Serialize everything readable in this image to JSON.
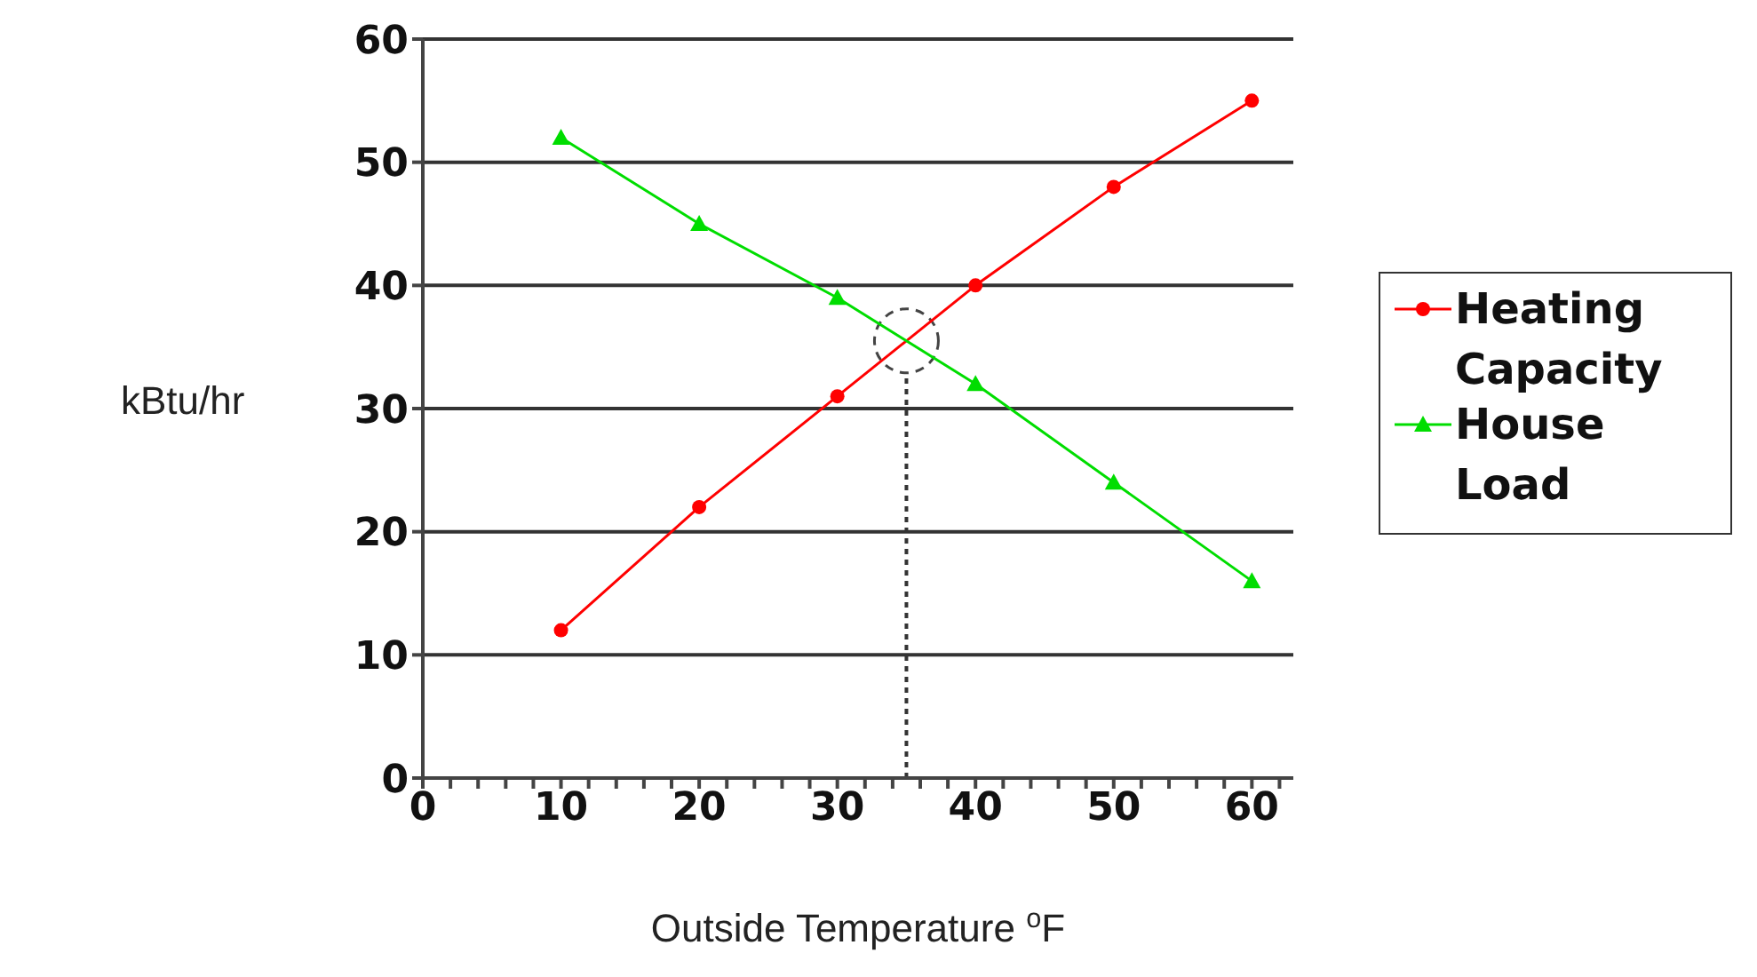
{
  "chart_data": {
    "type": "line",
    "xlabel": "Outside Temperature $^{o}$F",
    "ylabel": "kBtu/hr",
    "x": [
      10,
      20,
      30,
      40,
      50,
      60
    ],
    "series": [
      {
        "name": "Heating Capacity",
        "color": "#ff0000",
        "marker": "circle",
        "values": [
          12,
          22,
          31,
          40,
          48,
          55
        ]
      },
      {
        "name": "House Load",
        "color": "#00dd00",
        "marker": "triangle",
        "values": [
          52,
          45,
          39,
          32,
          24,
          16
        ]
      }
    ],
    "xlim": [
      0,
      63
    ],
    "xticks": [
      0,
      {
        "value": 2,
        "label": null
      },
      {
        "value": 4,
        "label": null
      },
      {
        "value": 6,
        "label": null
      },
      {
        "value": 8,
        "label": null
      },
      10,
      {
        "value": 12,
        "label": null
      },
      {
        "value": 14,
        "label": null
      },
      {
        "value": 16,
        "label": null
      },
      {
        "value": 18,
        "label": null
      },
      20,
      {
        "value": 22,
        "label": null
      },
      {
        "value": 24,
        "label": null
      },
      {
        "value": 26,
        "label": null
      },
      {
        "value": 28,
        "label": null
      },
      30,
      {
        "value": 32,
        "label": null
      },
      {
        "value": 34,
        "label": null
      },
      {
        "value": 36,
        "label": null
      },
      {
        "value": 38,
        "label": null
      },
      40,
      {
        "value": 42,
        "label": null
      },
      {
        "value": 44,
        "label": null
      },
      {
        "value": 46,
        "label": null
      },
      {
        "value": 48,
        "label": null
      },
      50,
      {
        "value": 52,
        "label": null
      },
      {
        "value": 54,
        "label": null
      },
      {
        "value": 56,
        "label": null
      },
      {
        "value": 58,
        "label": null
      },
      60,
      {
        "value": 62,
        "label": null
      }
    ],
    "ylim": [
      0,
      60
    ],
    "yticks": [
      0,
      10,
      20,
      30,
      40,
      50,
      60
    ],
    "ref_lines": [
      {
        "axis": "x",
        "value": 35,
        "line_style": "dotted",
        "color": "#333333"
      }
    ],
    "grid": "y",
    "legend": "right"
  }
}
